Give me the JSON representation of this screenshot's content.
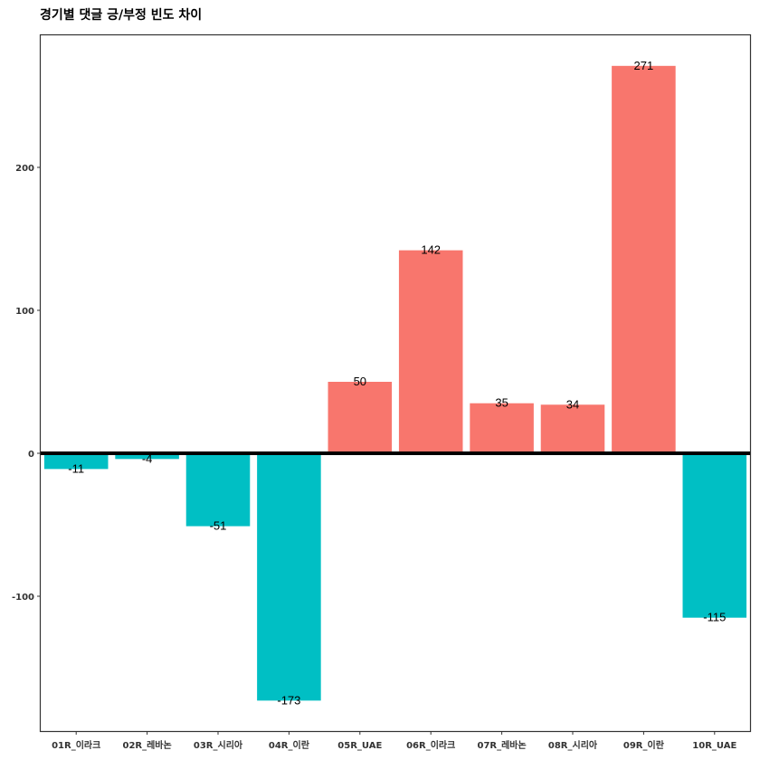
{
  "title": "경기별 댓글 긍/부정 빈도 차이",
  "chart_data": {
    "type": "bar",
    "title": "경기별 댓글 긍/부정 빈도 차이",
    "xlabel": "",
    "ylabel": "",
    "categories": [
      "01R_이라크",
      "02R_레바논",
      "03R_시리아",
      "04R_이란",
      "05R_UAE",
      "06R_이라크",
      "07R_레바논",
      "08R_시리아",
      "09R_이란",
      "10R_UAE"
    ],
    "values": [
      -11,
      -4,
      -51,
      -173,
      50,
      142,
      35,
      34,
      271,
      -115
    ],
    "ylim": [
      -195,
      293
    ],
    "yticks": [
      -100,
      0,
      100,
      200
    ],
    "grid": false,
    "legend": "none",
    "colors": {
      "positive": "#F8766D",
      "negative": "#00BFC4",
      "zero_line": "#000000",
      "frame": "#333333"
    }
  }
}
